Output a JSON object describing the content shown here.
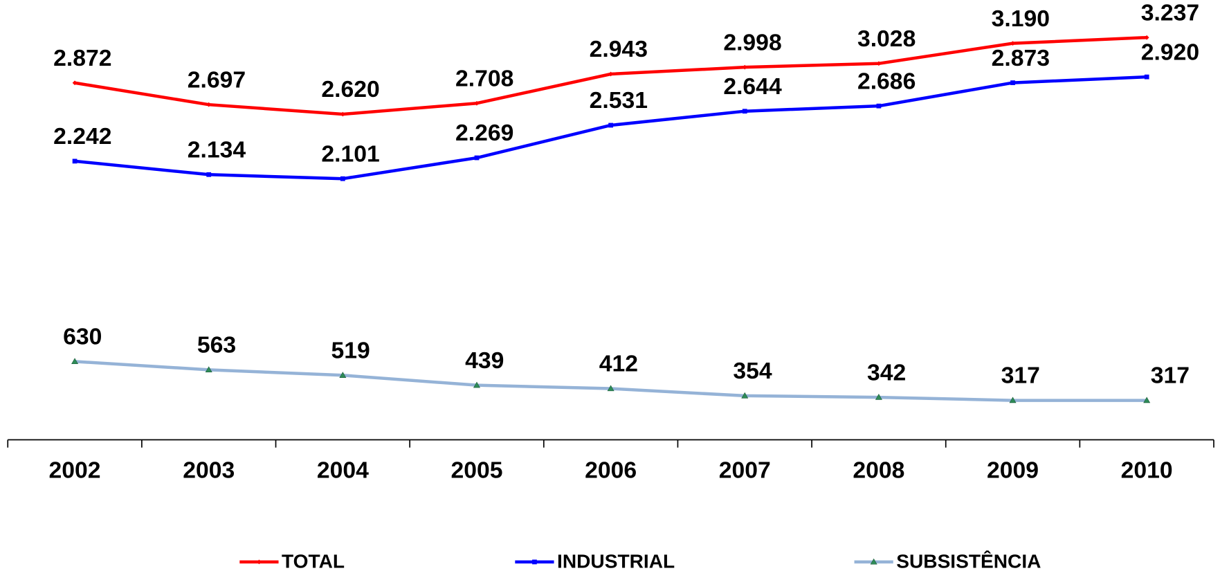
{
  "chart_data": {
    "type": "line",
    "categories": [
      "2002",
      "2003",
      "2004",
      "2005",
      "2006",
      "2007",
      "2008",
      "2009",
      "2010"
    ],
    "series": [
      {
        "name": "TOTAL",
        "color": "#ff0000",
        "values": [
          2872,
          2697,
          2620,
          2708,
          2943,
          2998,
          3028,
          3190,
          3237
        ],
        "value_labels": [
          "2.872",
          "2.697",
          "2.620",
          "2.708",
          "2.943",
          "2.998",
          "3.028",
          "3.190",
          "3.237"
        ]
      },
      {
        "name": "INDUSTRIAL",
        "color": "#0000ff",
        "values": [
          2242,
          2134,
          2101,
          2269,
          2531,
          2644,
          2686,
          2873,
          2920
        ],
        "value_labels": [
          "2.242",
          "2.134",
          "2.101",
          "2.269",
          "2.531",
          "2.644",
          "2.686",
          "2.873",
          "2.920"
        ]
      },
      {
        "name": "SUBSISTÊNCIA",
        "color": "#95b3d7",
        "values": [
          630,
          563,
          519,
          439,
          412,
          354,
          342,
          317,
          317
        ]
      }
    ],
    "ylim": [
      0,
      3500
    ],
    "legend": "bottom"
  }
}
